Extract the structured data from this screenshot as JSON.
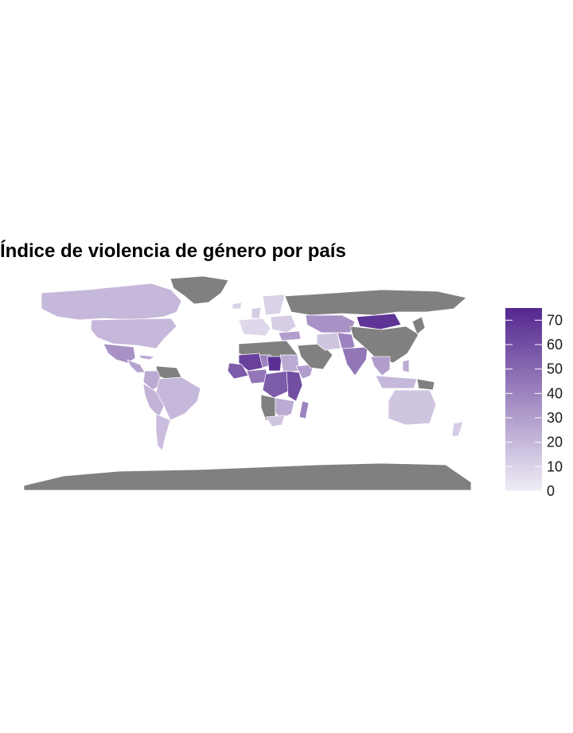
{
  "title": "Índice de violencia de género por país",
  "colors": {
    "background": "#ffffff",
    "no_data": "#808080",
    "border": "#ffffff",
    "scale_low": "#efedf5",
    "scale_high": "#54278f"
  },
  "chart_data": {
    "type": "choropleth",
    "title": "Índice de violencia de género por país",
    "legend": {
      "position": "right",
      "min": 0,
      "max": 75,
      "ticks": [
        0,
        10,
        20,
        30,
        40,
        50,
        60,
        70
      ],
      "tick_labels": [
        "0",
        "10",
        "20",
        "30",
        "40",
        "50",
        "60",
        "70"
      ]
    },
    "regions": [
      {
        "id": "canada",
        "value": 20
      },
      {
        "id": "greenland",
        "value": null
      },
      {
        "id": "usa",
        "value": 20
      },
      {
        "id": "mexico",
        "value": 35
      },
      {
        "id": "central-america",
        "value": 28
      },
      {
        "id": "cuba",
        "value": 25
      },
      {
        "id": "venezuela-guianas",
        "value": null
      },
      {
        "id": "colombia",
        "value": 25
      },
      {
        "id": "brazil",
        "value": 20
      },
      {
        "id": "andes",
        "value": 22
      },
      {
        "id": "southern-cone",
        "value": 18
      },
      {
        "id": "iceland",
        "value": 10
      },
      {
        "id": "uk-ireland",
        "value": 12
      },
      {
        "id": "scandinavia",
        "value": 10
      },
      {
        "id": "western-europe",
        "value": 8
      },
      {
        "id": "eastern-europe",
        "value": 12
      },
      {
        "id": "russia",
        "value": null
      },
      {
        "id": "turkey",
        "value": 30
      },
      {
        "id": "north-africa",
        "value": null
      },
      {
        "id": "mauritania-mali",
        "value": 65
      },
      {
        "id": "west-coast",
        "value": 55
      },
      {
        "id": "niger",
        "value": 40
      },
      {
        "id": "chad",
        "value": 72
      },
      {
        "id": "sudan",
        "value": 25
      },
      {
        "id": "gulf-of-guinea",
        "value": 45
      },
      {
        "id": "central-africa",
        "value": 55
      },
      {
        "id": "east-africa",
        "value": 60
      },
      {
        "id": "horn-of-africa",
        "value": 30
      },
      {
        "id": "southern-africa-west",
        "value": null
      },
      {
        "id": "southern-africa-east",
        "value": 25
      },
      {
        "id": "south-africa",
        "value": 15
      },
      {
        "id": "madagascar",
        "value": 40
      },
      {
        "id": "arabia",
        "value": null
      },
      {
        "id": "iran",
        "value": 15
      },
      {
        "id": "central-asia",
        "value": 35
      },
      {
        "id": "afghanistan-pakistan",
        "value": 40
      },
      {
        "id": "india",
        "value": 45
      },
      {
        "id": "mongolia",
        "value": 70
      },
      {
        "id": "china",
        "value": null
      },
      {
        "id": "korea-japan",
        "value": null
      },
      {
        "id": "mainland-se-asia",
        "value": 30
      },
      {
        "id": "indonesia",
        "value": 20
      },
      {
        "id": "philippines",
        "value": 25
      },
      {
        "id": "png",
        "value": null
      },
      {
        "id": "australia",
        "value": 15
      },
      {
        "id": "new-zealand",
        "value": 12
      },
      {
        "id": "antarctica",
        "value": null
      }
    ]
  }
}
